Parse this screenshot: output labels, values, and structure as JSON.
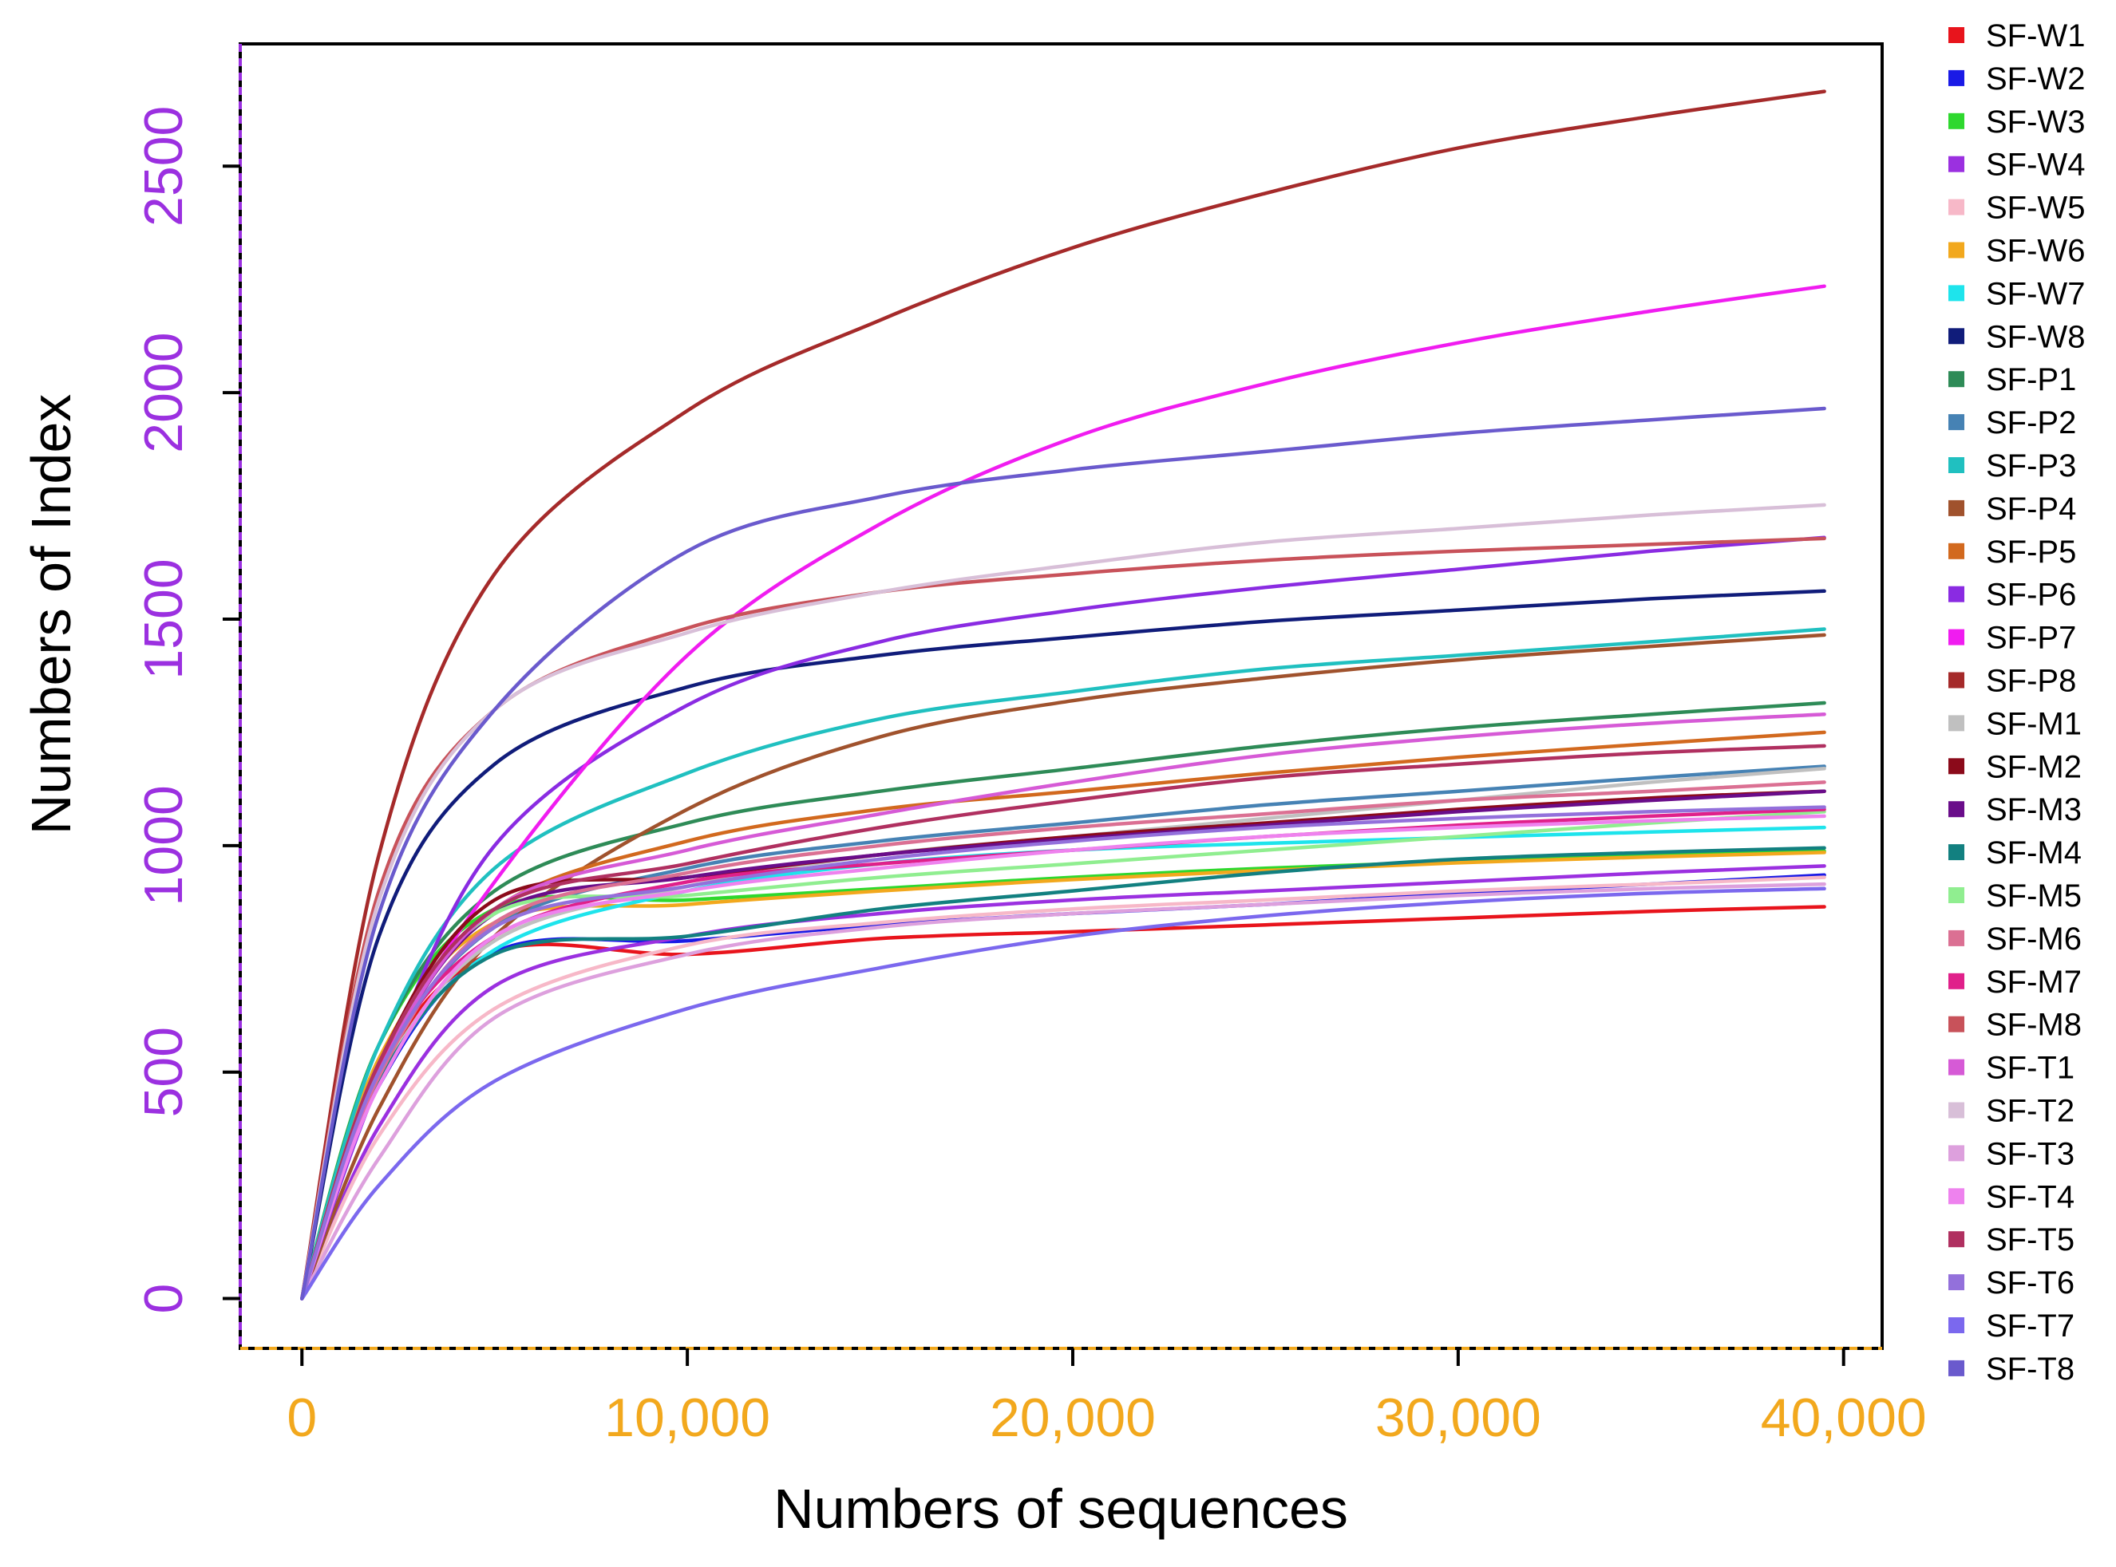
{
  "chart_data": {
    "type": "line",
    "title": "",
    "xlabel": "Numbers of sequences",
    "ylabel": "Numbers of Index",
    "xlim": [
      -1600,
      41000
    ],
    "ylim": [
      -110,
      2770
    ],
    "x_ticks": [
      0,
      10000,
      20000,
      30000,
      40000
    ],
    "x_tick_labels": [
      "0",
      "10,000",
      "20,000",
      "30,000",
      "40,000"
    ],
    "y_ticks": [
      0,
      500,
      1000,
      1500,
      2000,
      2500
    ],
    "y_tick_labels": [
      "0",
      "500",
      "1000",
      "1500",
      "2000",
      "2500"
    ],
    "x_tick_color": "#f2a81d",
    "y_tick_color": "#9b30e0",
    "grid": false,
    "legend_position": "right",
    "sample_x": [
      0,
      2000,
      5000,
      10000,
      15000,
      20000,
      25000,
      30000,
      35000,
      39500
    ],
    "series": [
      {
        "name": "SF-W1",
        "color": "#e8141c",
        "values": [
          0,
          500,
          765,
          760,
          795,
          810,
          825,
          840,
          855,
          865
        ]
      },
      {
        "name": "SF-W2",
        "color": "#1a1ae6",
        "values": [
          0,
          470,
          765,
          790,
          825,
          850,
          870,
          895,
          915,
          935
        ]
      },
      {
        "name": "SF-W3",
        "color": "#2ed82e",
        "values": [
          0,
          560,
          860,
          880,
          905,
          930,
          950,
          965,
          978,
          988
        ]
      },
      {
        "name": "SF-W4",
        "color": "#9b30e0",
        "values": [
          0,
          380,
          690,
          800,
          850,
          880,
          900,
          920,
          940,
          955
        ]
      },
      {
        "name": "SF-W5",
        "color": "#f7b8c8",
        "values": [
          0,
          360,
          640,
          780,
          830,
          860,
          880,
          900,
          915,
          930
        ]
      },
      {
        "name": "SF-W6",
        "color": "#f2a81d",
        "values": [
          0,
          530,
          830,
          870,
          900,
          925,
          945,
          962,
          975,
          985
        ]
      },
      {
        "name": "SF-W7",
        "color": "#1ee4ec",
        "values": [
          0,
          480,
          770,
          900,
          960,
          990,
          1005,
          1018,
          1030,
          1040
        ]
      },
      {
        "name": "SF-W8",
        "color": "#101c7a",
        "values": [
          0,
          800,
          1180,
          1350,
          1420,
          1460,
          1495,
          1520,
          1545,
          1562
        ]
      },
      {
        "name": "SF-P1",
        "color": "#2e8b57",
        "values": [
          0,
          560,
          900,
          1050,
          1120,
          1170,
          1220,
          1260,
          1290,
          1315
        ]
      },
      {
        "name": "SF-P2",
        "color": "#4682b4",
        "values": [
          0,
          500,
          820,
          950,
          1010,
          1050,
          1090,
          1120,
          1150,
          1175
        ]
      },
      {
        "name": "SF-P3",
        "color": "#20c0c0",
        "values": [
          0,
          560,
          950,
          1160,
          1280,
          1340,
          1390,
          1420,
          1450,
          1478
        ]
      },
      {
        "name": "SF-P4",
        "color": "#a0522d",
        "values": [
          0,
          420,
          800,
          1080,
          1240,
          1320,
          1370,
          1410,
          1440,
          1465
        ]
      },
      {
        "name": "SF-P5",
        "color": "#d2691e",
        "values": [
          0,
          520,
          860,
          1010,
          1080,
          1120,
          1160,
          1195,
          1225,
          1250
        ]
      },
      {
        "name": "SF-P6",
        "color": "#8a2be2",
        "values": [
          0,
          480,
          1000,
          1310,
          1450,
          1520,
          1570,
          1610,
          1650,
          1680
        ]
      },
      {
        "name": "SF-P7",
        "color": "#f01cf0",
        "values": [
          0,
          500,
          920,
          1420,
          1710,
          1900,
          2020,
          2110,
          2180,
          2235
        ]
      },
      {
        "name": "SF-P8",
        "color": "#a52a2a",
        "values": [
          0,
          980,
          1600,
          1960,
          2160,
          2320,
          2440,
          2540,
          2610,
          2665
        ]
      },
      {
        "name": "SF-M1",
        "color": "#c0c0c0",
        "values": [
          0,
          480,
          790,
          910,
          980,
          1020,
          1060,
          1100,
          1140,
          1170
        ]
      },
      {
        "name": "SF-M2",
        "color": "#8b0a1a",
        "values": [
          0,
          520,
          880,
          930,
          980,
          1020,
          1050,
          1080,
          1105,
          1120
        ]
      },
      {
        "name": "SF-M3",
        "color": "#6a0d8a",
        "values": [
          0,
          500,
          850,
          930,
          980,
          1015,
          1045,
          1075,
          1100,
          1120
        ]
      },
      {
        "name": "SF-M4",
        "color": "#128080",
        "values": [
          0,
          480,
          760,
          800,
          860,
          900,
          940,
          970,
          985,
          995
        ]
      },
      {
        "name": "SF-M5",
        "color": "#90ee90",
        "values": [
          0,
          520,
          850,
          890,
          930,
          960,
          990,
          1020,
          1050,
          1075
        ]
      },
      {
        "name": "SF-M6",
        "color": "#db7093",
        "values": [
          0,
          490,
          830,
          940,
          1000,
          1040,
          1070,
          1100,
          1120,
          1140
        ]
      },
      {
        "name": "SF-M7",
        "color": "#e0208a",
        "values": [
          0,
          510,
          800,
          920,
          960,
          990,
          1020,
          1045,
          1065,
          1080
        ]
      },
      {
        "name": "SF-M8",
        "color": "#c8525a",
        "values": [
          0,
          900,
          1300,
          1480,
          1560,
          1600,
          1630,
          1650,
          1665,
          1678
        ]
      },
      {
        "name": "SF-T1",
        "color": "#d65ad6",
        "values": [
          0,
          500,
          860,
          990,
          1070,
          1140,
          1200,
          1240,
          1270,
          1290
        ]
      },
      {
        "name": "SF-T2",
        "color": "#d8bfd8",
        "values": [
          0,
          880,
          1300,
          1470,
          1560,
          1620,
          1670,
          1700,
          1730,
          1752
        ]
      },
      {
        "name": "SF-T3",
        "color": "#dda0dd",
        "values": [
          0,
          310,
          620,
          760,
          820,
          850,
          870,
          890,
          905,
          915
        ]
      },
      {
        "name": "SF-T4",
        "color": "#ee82ee",
        "values": [
          0,
          470,
          800,
          900,
          950,
          990,
          1020,
          1040,
          1055,
          1065
        ]
      },
      {
        "name": "SF-T5",
        "color": "#b03060",
        "values": [
          0,
          520,
          860,
          960,
          1040,
          1100,
          1150,
          1180,
          1205,
          1220
        ]
      },
      {
        "name": "SF-T6",
        "color": "#9370db",
        "values": [
          0,
          500,
          820,
          910,
          970,
          1010,
          1040,
          1060,
          1075,
          1085
        ]
      },
      {
        "name": "SF-T7",
        "color": "#7b68ee",
        "values": [
          0,
          250,
          480,
          640,
          730,
          800,
          845,
          875,
          895,
          905
        ]
      },
      {
        "name": "SF-T8",
        "color": "#6a5acd",
        "values": [
          0,
          850,
          1300,
          1650,
          1770,
          1830,
          1870,
          1910,
          1940,
          1965
        ]
      }
    ]
  }
}
